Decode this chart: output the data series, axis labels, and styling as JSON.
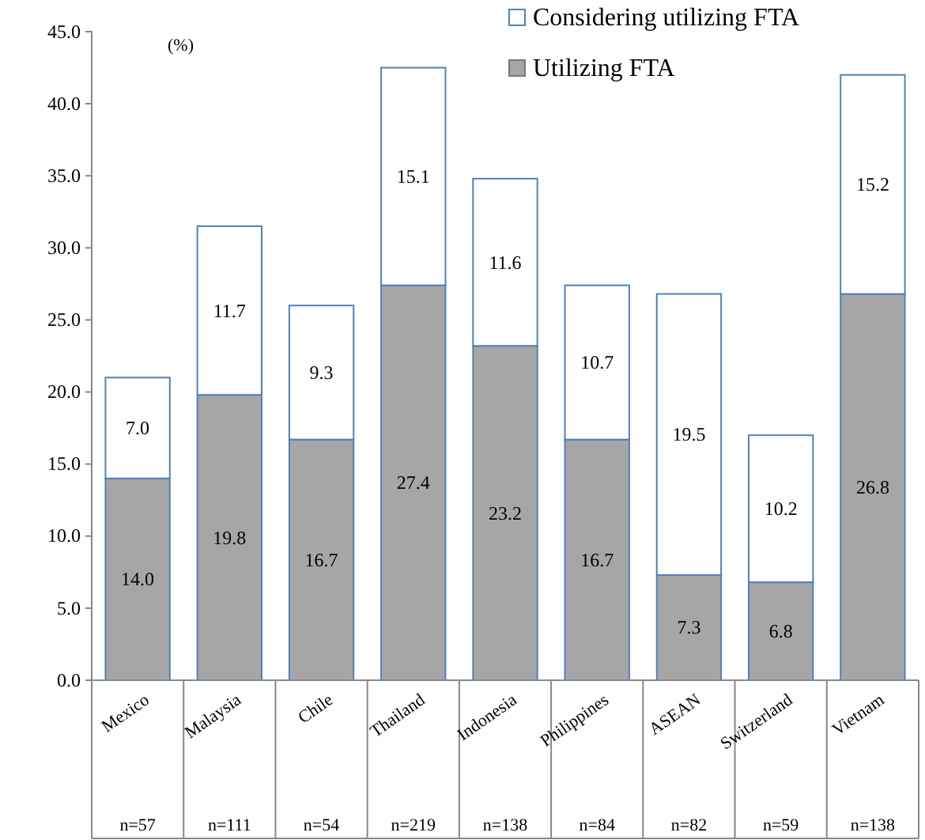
{
  "chart_data": {
    "type": "bar",
    "stacked": true,
    "ylabel": "(%)",
    "categories": [
      "Mexico",
      "Malaysia",
      "Chile",
      "Thailand",
      "Indonesia",
      "Philippines",
      "ASEAN",
      "Switzerland",
      "Vietnam"
    ],
    "series": [
      {
        "name": "Utilizing FTA",
        "color": "#a6a6a6",
        "values": [
          14.0,
          19.8,
          16.7,
          27.4,
          23.2,
          16.7,
          7.3,
          6.8,
          26.8
        ],
        "value_labels": [
          "14.0",
          "19.8",
          "16.7",
          "27.4",
          "23.2",
          "16.7",
          "7.3",
          "6.8",
          "26.8"
        ]
      },
      {
        "name": "Considering utilizing FTA",
        "color": "#ffffff",
        "values": [
          7.0,
          11.7,
          9.3,
          15.1,
          11.6,
          10.7,
          19.5,
          10.2,
          15.2
        ],
        "value_labels": [
          "7.0",
          "11.7",
          "9.3",
          "15.1",
          "11.6",
          "10.7",
          "19.5",
          "10.2",
          "15.2"
        ]
      }
    ],
    "ylim": [
      0,
      45
    ],
    "yticks": [
      {
        "value": 0,
        "label": "0.0"
      },
      {
        "value": 5,
        "label": "5.0"
      },
      {
        "value": 10,
        "label": "10.0"
      },
      {
        "value": 15,
        "label": "15.0"
      },
      {
        "value": 20,
        "label": "20.0"
      },
      {
        "value": 25,
        "label": "25.0"
      },
      {
        "value": 30,
        "label": "30.0"
      },
      {
        "value": 35,
        "label": "35.0"
      },
      {
        "value": 40,
        "label": "40.0"
      },
      {
        "value": 45,
        "label": "45.0"
      }
    ],
    "legend": "top right",
    "annotations": [
      "n=57",
      "n=111",
      "n=54",
      "n=219",
      "n=138",
      "n=84",
      "n=82",
      "n=59",
      "n=138"
    ]
  }
}
